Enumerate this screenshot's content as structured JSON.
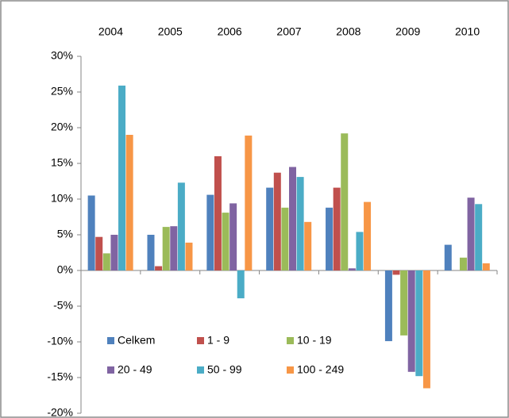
{
  "chart_data": {
    "type": "bar",
    "categories": [
      "2004",
      "2005",
      "2006",
      "2007",
      "2008",
      "2009",
      "2010"
    ],
    "series": [
      {
        "name": "Celkem",
        "color": "#4f81bd",
        "values": [
          10.5,
          5.0,
          10.6,
          11.6,
          8.8,
          -9.9,
          3.6
        ]
      },
      {
        "name": "1 - 9",
        "color": "#c0504d",
        "values": [
          4.7,
          0.6,
          16.0,
          13.7,
          11.6,
          -0.6,
          0
        ]
      },
      {
        "name": "10 - 19",
        "color": "#9bbb59",
        "values": [
          2.4,
          6.1,
          8.1,
          8.8,
          19.2,
          -9.1,
          1.8
        ]
      },
      {
        "name": "20 - 49",
        "color": "#8064a2",
        "values": [
          5.0,
          6.2,
          9.4,
          14.5,
          0.3,
          -14.2,
          10.2
        ]
      },
      {
        "name": "50 - 99",
        "color": "#4bacc6",
        "values": [
          25.9,
          12.3,
          -3.9,
          13.1,
          5.4,
          -14.8,
          9.3
        ]
      },
      {
        "name": "100 - 249",
        "color": "#f79646",
        "values": [
          19.0,
          3.9,
          18.9,
          6.8,
          9.6,
          -16.5,
          1.0
        ]
      }
    ],
    "ylim": [
      -20,
      30
    ],
    "yticks": [
      {
        "value": -20,
        "label": "-20%"
      },
      {
        "value": -15,
        "label": "-15%"
      },
      {
        "value": -10,
        "label": "-10%"
      },
      {
        "value": -5,
        "label": "-5%"
      },
      {
        "value": 0,
        "label": "0%"
      },
      {
        "value": 5,
        "label": "5%"
      },
      {
        "value": 10,
        "label": "10%"
      },
      {
        "value": 15,
        "label": "15%"
      },
      {
        "value": 20,
        "label": "20%"
      },
      {
        "value": 25,
        "label": "25%"
      },
      {
        "value": 30,
        "label": "30%"
      }
    ],
    "grid": false
  }
}
